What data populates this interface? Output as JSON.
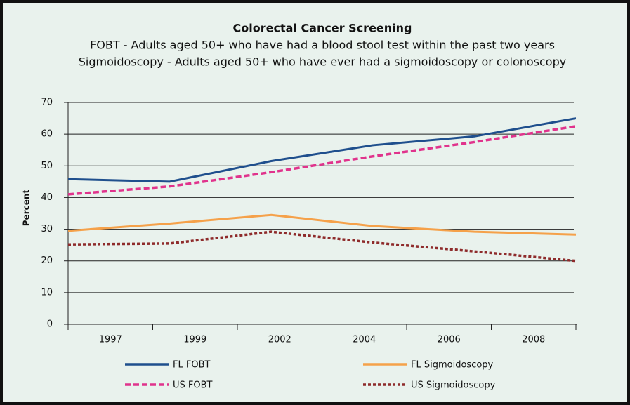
{
  "chart_data": {
    "type": "line",
    "title": "Colorectal Cancer Screening",
    "subtitle": [
      "FOBT - Adults aged 50+ who have had a blood stool test within the past two years",
      "Sigmoidoscopy - Adults aged 50+ who have ever had a sigmoidoscopy or colonoscopy"
    ],
    "y_label": "Percent",
    "categories": [
      "1997",
      "1999",
      "2002",
      "2004",
      "2006",
      "2008"
    ],
    "series": [
      {
        "name": "FL FOBT",
        "color": "#1f4f8d",
        "dash": "solid",
        "values": [
          45.8,
          45,
          51.5,
          56.5,
          59.3,
          65
        ]
      },
      {
        "name": "US FOBT",
        "color": "#e0338c",
        "dash": "dashed",
        "values": [
          41,
          43.5,
          48,
          53,
          57.5,
          62.5
        ]
      },
      {
        "name": "FL Sigmoidoscopy",
        "color": "#f5a14a",
        "dash": "solid",
        "values": [
          29.5,
          31.8,
          34.5,
          31,
          29.2,
          28.3
        ]
      },
      {
        "name": "US Sigmoidoscopy",
        "color": "#8e2b2b",
        "dash": "dotted",
        "values": [
          25.2,
          25.5,
          29.2,
          25.8,
          23,
          20
        ]
      }
    ],
    "ylim": [
      0,
      70
    ],
    "yticks": [
      0,
      10,
      20,
      30,
      40,
      50,
      60,
      70
    ],
    "grid": true
  }
}
